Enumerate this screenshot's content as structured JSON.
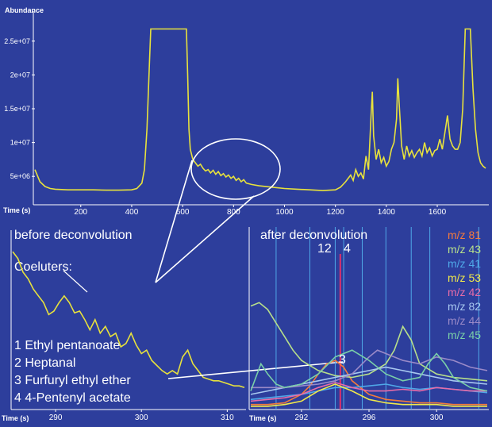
{
  "colors": {
    "background": "#2d3e9c",
    "trace": "#e8e23c",
    "axis_text": "#ffffff",
    "overlay": "#ffffff"
  },
  "labels": {
    "before": "before deconvolution",
    "after": "after deconvolution",
    "coeluters": "Coeluters:",
    "peak_numbers_top": "12",
    "peak_4": "4",
    "peak_3": "3"
  },
  "compounds": [
    "1 Ethyl pentanoate",
    "2 Heptanal",
    "3 Furfuryl ethyl ether",
    "4 4-Pentenyl acetate"
  ],
  "chart_data": [
    {
      "type": "line",
      "ylabel": "Abundance",
      "xlabel": "Time (s)",
      "x_ticks": [
        200,
        400,
        600,
        800,
        1000,
        1200,
        1400,
        1600
      ],
      "y_ticks": [
        "5e+06",
        "1e+07",
        "1.5e+07",
        "2e+07",
        "2.5e+07"
      ],
      "y_tick_values": [
        5000000,
        10000000,
        15000000,
        20000000,
        25000000
      ],
      "xlim": [
        20,
        1790
      ],
      "ylim": [
        1500000,
        28500000
      ],
      "series": [
        {
          "x": [
            20,
            40,
            60,
            80,
            100,
            150,
            200,
            250,
            300,
            350,
            400,
            420,
            440,
            450,
            460,
            470,
            475,
            480,
            500,
            600,
            615,
            620,
            625,
            630,
            640,
            650,
            660,
            670,
            680,
            690,
            700,
            710,
            720,
            730,
            740,
            750,
            760,
            770,
            780,
            790,
            800,
            810,
            820,
            830,
            840,
            850,
            870,
            900,
            950,
            1000,
            1050,
            1100,
            1150,
            1200,
            1220,
            1240,
            1260,
            1270,
            1280,
            1290,
            1300,
            1310,
            1320,
            1330,
            1340,
            1345,
            1350,
            1360,
            1370,
            1380,
            1390,
            1400,
            1410,
            1420,
            1430,
            1440,
            1445,
            1450,
            1460,
            1470,
            1480,
            1490,
            1500,
            1510,
            1520,
            1530,
            1540,
            1550,
            1560,
            1570,
            1580,
            1590,
            1600,
            1610,
            1620,
            1630,
            1640,
            1650,
            1660,
            1670,
            1680,
            1690,
            1700,
            1710,
            1720,
            1730,
            1740,
            1750,
            1760,
            1770,
            1780,
            1790
          ],
          "y": [
            6000000,
            4200000,
            3500000,
            3200000,
            3100000,
            3000000,
            3000000,
            3000000,
            2950000,
            2950000,
            3000000,
            3200000,
            4000000,
            6000000,
            12000000,
            22000000,
            26800000,
            26800000,
            26800000,
            26800000,
            26800000,
            20000000,
            12000000,
            9000000,
            7500000,
            7000000,
            6500000,
            6800000,
            6200000,
            5800000,
            6000000,
            5500000,
            5900000,
            5300000,
            5700000,
            5100000,
            5400000,
            4900000,
            5200000,
            4700000,
            5000000,
            4400000,
            4700000,
            4200000,
            4500000,
            4000000,
            3800000,
            3600000,
            3400000,
            3200000,
            3100000,
            3000000,
            2900000,
            3000000,
            3400000,
            4200000,
            5200000,
            4400000,
            6000000,
            5000000,
            5500000,
            4600000,
            8000000,
            6000000,
            14000000,
            17500000,
            11000000,
            7500000,
            9000000,
            7000000,
            7800000,
            6500000,
            7200000,
            9000000,
            10000000,
            13500000,
            19500000,
            16000000,
            9500000,
            7500000,
            9500000,
            8000000,
            8800000,
            7800000,
            8500000,
            9000000,
            8000000,
            10000000,
            8500000,
            9200000,
            8000000,
            8800000,
            9000000,
            10500000,
            9000000,
            11500000,
            14000000,
            10500000,
            9500000,
            9000000,
            9000000,
            10000000,
            15000000,
            26800000,
            26800000,
            26800000,
            18000000,
            12000000,
            8500000,
            7000000,
            6500000,
            6200000
          ]
        }
      ]
    },
    {
      "type": "line",
      "title": "before deconvolution",
      "xlabel": "Time (s)",
      "x_ticks": [
        290,
        300,
        310
      ],
      "xlim": [
        285,
        312
      ],
      "ylim": [
        0,
        100
      ],
      "series": [
        {
          "x": [
            285,
            285.6,
            286.2,
            286.8,
            287.4,
            288,
            288.6,
            289.2,
            289.8,
            290.4,
            291,
            291.6,
            292.2,
            292.8,
            293.4,
            294,
            294.6,
            295.2,
            295.8,
            296.4,
            297,
            297.6,
            298.2,
            298.8,
            299.4,
            300,
            300.6,
            301.2,
            301.8,
            302.4,
            303,
            303.6,
            304.2,
            304.8,
            305.4,
            306,
            306.6,
            307.2,
            307.8,
            308.4,
            309,
            309.6,
            310.2,
            310.8,
            311.4,
            312
          ],
          "y": [
            92,
            88,
            80,
            76,
            70,
            66,
            62,
            55,
            57,
            62,
            66,
            62,
            56,
            57,
            52,
            46,
            52,
            44,
            48,
            42,
            44,
            36,
            38,
            44,
            37,
            32,
            34,
            28,
            25,
            22,
            20,
            22,
            20,
            30,
            34,
            26,
            22,
            18,
            17,
            16,
            16,
            15,
            14,
            13,
            13,
            12
          ]
        }
      ]
    },
    {
      "type": "line",
      "title": "after deconvolution",
      "xlabel": "Time (s)",
      "x_ticks": [
        292,
        296,
        300
      ],
      "xlim": [
        289,
        303
      ],
      "ylim": [
        0,
        100
      ],
      "series": [
        {
          "name": "m/z 81",
          "color": "#f47a3c",
          "x": [
            289,
            290,
            291,
            292,
            292.5,
            293,
            293.5,
            294,
            294.5,
            295,
            296,
            297,
            298,
            299,
            300,
            301,
            302,
            303
          ],
          "y": [
            2,
            2,
            3,
            8,
            13,
            20,
            26,
            28,
            24,
            16,
            8,
            5,
            4,
            3,
            3,
            2,
            2,
            2
          ]
        },
        {
          "name": "m/z 43",
          "color": "#b8e08a",
          "x": [
            289,
            289.5,
            290,
            290.5,
            291,
            291.5,
            292,
            293,
            294,
            295,
            296,
            297,
            297.5,
            298,
            298.5,
            299,
            300,
            301,
            302,
            303
          ],
          "y": [
            60,
            62,
            58,
            50,
            42,
            34,
            28,
            22,
            19,
            18,
            20,
            26,
            34,
            48,
            40,
            26,
            20,
            18,
            17,
            16
          ]
        },
        {
          "name": "m/z 41",
          "color": "#4fa8e8",
          "x": [
            289,
            290,
            291,
            292,
            293,
            294,
            295,
            296,
            297,
            298,
            299,
            300,
            301,
            302,
            303
          ],
          "y": [
            5,
            6,
            7,
            8,
            10,
            12,
            12,
            13,
            14,
            12,
            11,
            12,
            11,
            10,
            9
          ]
        },
        {
          "name": "m/z 53",
          "color": "#f0e84a",
          "x": [
            289,
            290,
            291,
            292,
            293,
            294,
            295,
            296,
            297,
            298,
            299,
            300,
            301,
            302,
            303
          ],
          "y": [
            1,
            1,
            2,
            4,
            10,
            14,
            10,
            5,
            3,
            2,
            2,
            2,
            1,
            1,
            1
          ]
        },
        {
          "name": "m/z 42",
          "color": "#e86ca8",
          "x": [
            289,
            290,
            291,
            292,
            293,
            294,
            295,
            296,
            297,
            298,
            299,
            300,
            301,
            302,
            303
          ],
          "y": [
            4,
            5,
            6,
            8,
            12,
            15,
            12,
            10,
            10,
            11,
            10,
            12,
            11,
            10,
            10
          ]
        },
        {
          "name": "m/z 82",
          "color": "#a8c8f0",
          "x": [
            289,
            290,
            291,
            292,
            293,
            294,
            295,
            296,
            297,
            298,
            299,
            300,
            301,
            302,
            303
          ],
          "y": [
            8,
            10,
            12,
            14,
            16,
            18,
            20,
            22,
            24,
            22,
            20,
            18,
            16,
            15,
            14
          ]
        },
        {
          "name": "m/z 44",
          "color": "#9a8ac8",
          "x": [
            289,
            290,
            291,
            292,
            293,
            294,
            295,
            296,
            296.5,
            297,
            298,
            299,
            300,
            301,
            302,
            303
          ],
          "y": [
            12,
            12,
            12,
            13,
            14,
            16,
            20,
            30,
            34,
            32,
            28,
            26,
            30,
            28,
            24,
            22
          ]
        },
        {
          "name": "m/z 45",
          "color": "#7ad0a8",
          "x": [
            289,
            289.3,
            289.6,
            290,
            290.5,
            291,
            292,
            293,
            294,
            295,
            296,
            297,
            298,
            299,
            299.5,
            300,
            300.5,
            301,
            302,
            303
          ],
          "y": [
            10,
            18,
            26,
            20,
            14,
            12,
            14,
            20,
            30,
            34,
            28,
            20,
            16,
            18,
            26,
            32,
            26,
            18,
            12,
            10
          ]
        }
      ]
    }
  ]
}
